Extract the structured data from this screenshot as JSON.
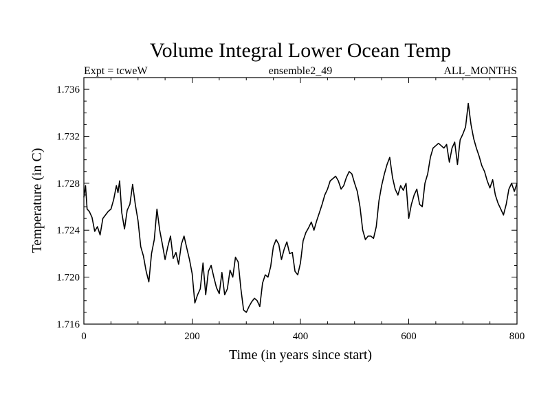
{
  "chart_data": {
    "type": "line",
    "title": "Volume Integral Lower Ocean Temp",
    "subtitle_left": "Expt = tcweW",
    "subtitle_center": "ensemble2_49",
    "subtitle_right": "ALL_MONTHS",
    "xlabel": "Time (in years since start)",
    "ylabel": "Temperature (in C)",
    "xlim": [
      0,
      800
    ],
    "ylim": [
      1.716,
      1.737
    ],
    "x_ticks": [
      0,
      200,
      400,
      600,
      800
    ],
    "x_tick_labels": [
      "0",
      "200",
      "400",
      "600",
      "800"
    ],
    "y_ticks": [
      1.716,
      1.72,
      1.724,
      1.728,
      1.732,
      1.736
    ],
    "y_tick_labels": [
      "1.716",
      "1.720",
      "1.724",
      "1.728",
      "1.732",
      "1.736"
    ],
    "grid": false,
    "series": [
      {
        "name": "ensemble2_49",
        "x": [
          0,
          3,
          6,
          10,
          15,
          20,
          25,
          30,
          35,
          40,
          45,
          50,
          55,
          60,
          63,
          66,
          70,
          75,
          80,
          85,
          90,
          95,
          100,
          105,
          110,
          115,
          120,
          125,
          130,
          135,
          140,
          145,
          150,
          155,
          160,
          165,
          170,
          175,
          180,
          185,
          190,
          195,
          200,
          205,
          210,
          215,
          220,
          225,
          230,
          235,
          240,
          245,
          250,
          255,
          260,
          265,
          270,
          275,
          280,
          285,
          290,
          295,
          300,
          305,
          310,
          315,
          320,
          325,
          330,
          335,
          340,
          345,
          350,
          355,
          360,
          365,
          370,
          375,
          380,
          385,
          390,
          395,
          400,
          405,
          410,
          415,
          420,
          425,
          430,
          435,
          440,
          445,
          450,
          455,
          460,
          465,
          470,
          475,
          480,
          485,
          490,
          495,
          500,
          505,
          510,
          515,
          520,
          525,
          530,
          535,
          540,
          545,
          550,
          555,
          560,
          565,
          570,
          575,
          580,
          585,
          590,
          595,
          600,
          605,
          610,
          615,
          620,
          625,
          630,
          635,
          640,
          645,
          650,
          655,
          660,
          665,
          670,
          675,
          680,
          685,
          690,
          695,
          700,
          705,
          710,
          715,
          720,
          725,
          730,
          735,
          740,
          745,
          750,
          755,
          760,
          765,
          770,
          775,
          780,
          785,
          790,
          795,
          800
        ],
        "y": [
          1.7268,
          1.7278,
          1.7258,
          1.7256,
          1.7251,
          1.7239,
          1.7243,
          1.7236,
          1.725,
          1.7253,
          1.7256,
          1.7258,
          1.7266,
          1.7278,
          1.7272,
          1.7282,
          1.7255,
          1.7241,
          1.7257,
          1.7262,
          1.7279,
          1.7262,
          1.7248,
          1.7226,
          1.7218,
          1.7205,
          1.7196,
          1.722,
          1.7232,
          1.7258,
          1.724,
          1.7228,
          1.7215,
          1.7226,
          1.7235,
          1.7216,
          1.7221,
          1.7211,
          1.7228,
          1.7235,
          1.7225,
          1.7215,
          1.7203,
          1.7178,
          1.7185,
          1.719,
          1.7212,
          1.7185,
          1.7205,
          1.721,
          1.72,
          1.7191,
          1.7186,
          1.7204,
          1.7185,
          1.719,
          1.7206,
          1.72,
          1.7217,
          1.7213,
          1.719,
          1.7172,
          1.717,
          1.7175,
          1.7179,
          1.7182,
          1.718,
          1.7175,
          1.7195,
          1.7202,
          1.72,
          1.7209,
          1.7226,
          1.7232,
          1.7228,
          1.7215,
          1.7224,
          1.723,
          1.722,
          1.7221,
          1.7205,
          1.7202,
          1.7212,
          1.7231,
          1.7238,
          1.7242,
          1.7247,
          1.724,
          1.7248,
          1.7255,
          1.7262,
          1.727,
          1.7275,
          1.7282,
          1.7284,
          1.7286,
          1.7282,
          1.7275,
          1.7278,
          1.7285,
          1.729,
          1.7288,
          1.728,
          1.7273,
          1.726,
          1.724,
          1.7232,
          1.7235,
          1.7235,
          1.7233,
          1.7243,
          1.7265,
          1.7278,
          1.7288,
          1.7296,
          1.7302,
          1.7285,
          1.7275,
          1.727,
          1.7278,
          1.7274,
          1.728,
          1.725,
          1.7262,
          1.727,
          1.7275,
          1.7262,
          1.726,
          1.728,
          1.7288,
          1.7302,
          1.731,
          1.7312,
          1.7314,
          1.7312,
          1.731,
          1.7313,
          1.7298,
          1.731,
          1.7315,
          1.7296,
          1.7317,
          1.7322,
          1.7328,
          1.7348,
          1.733,
          1.7318,
          1.731,
          1.7303,
          1.7295,
          1.729,
          1.7282,
          1.7276,
          1.7283,
          1.727,
          1.7263,
          1.7258,
          1.7253,
          1.7262,
          1.7275,
          1.728,
          1.7273,
          1.728
        ]
      }
    ]
  }
}
